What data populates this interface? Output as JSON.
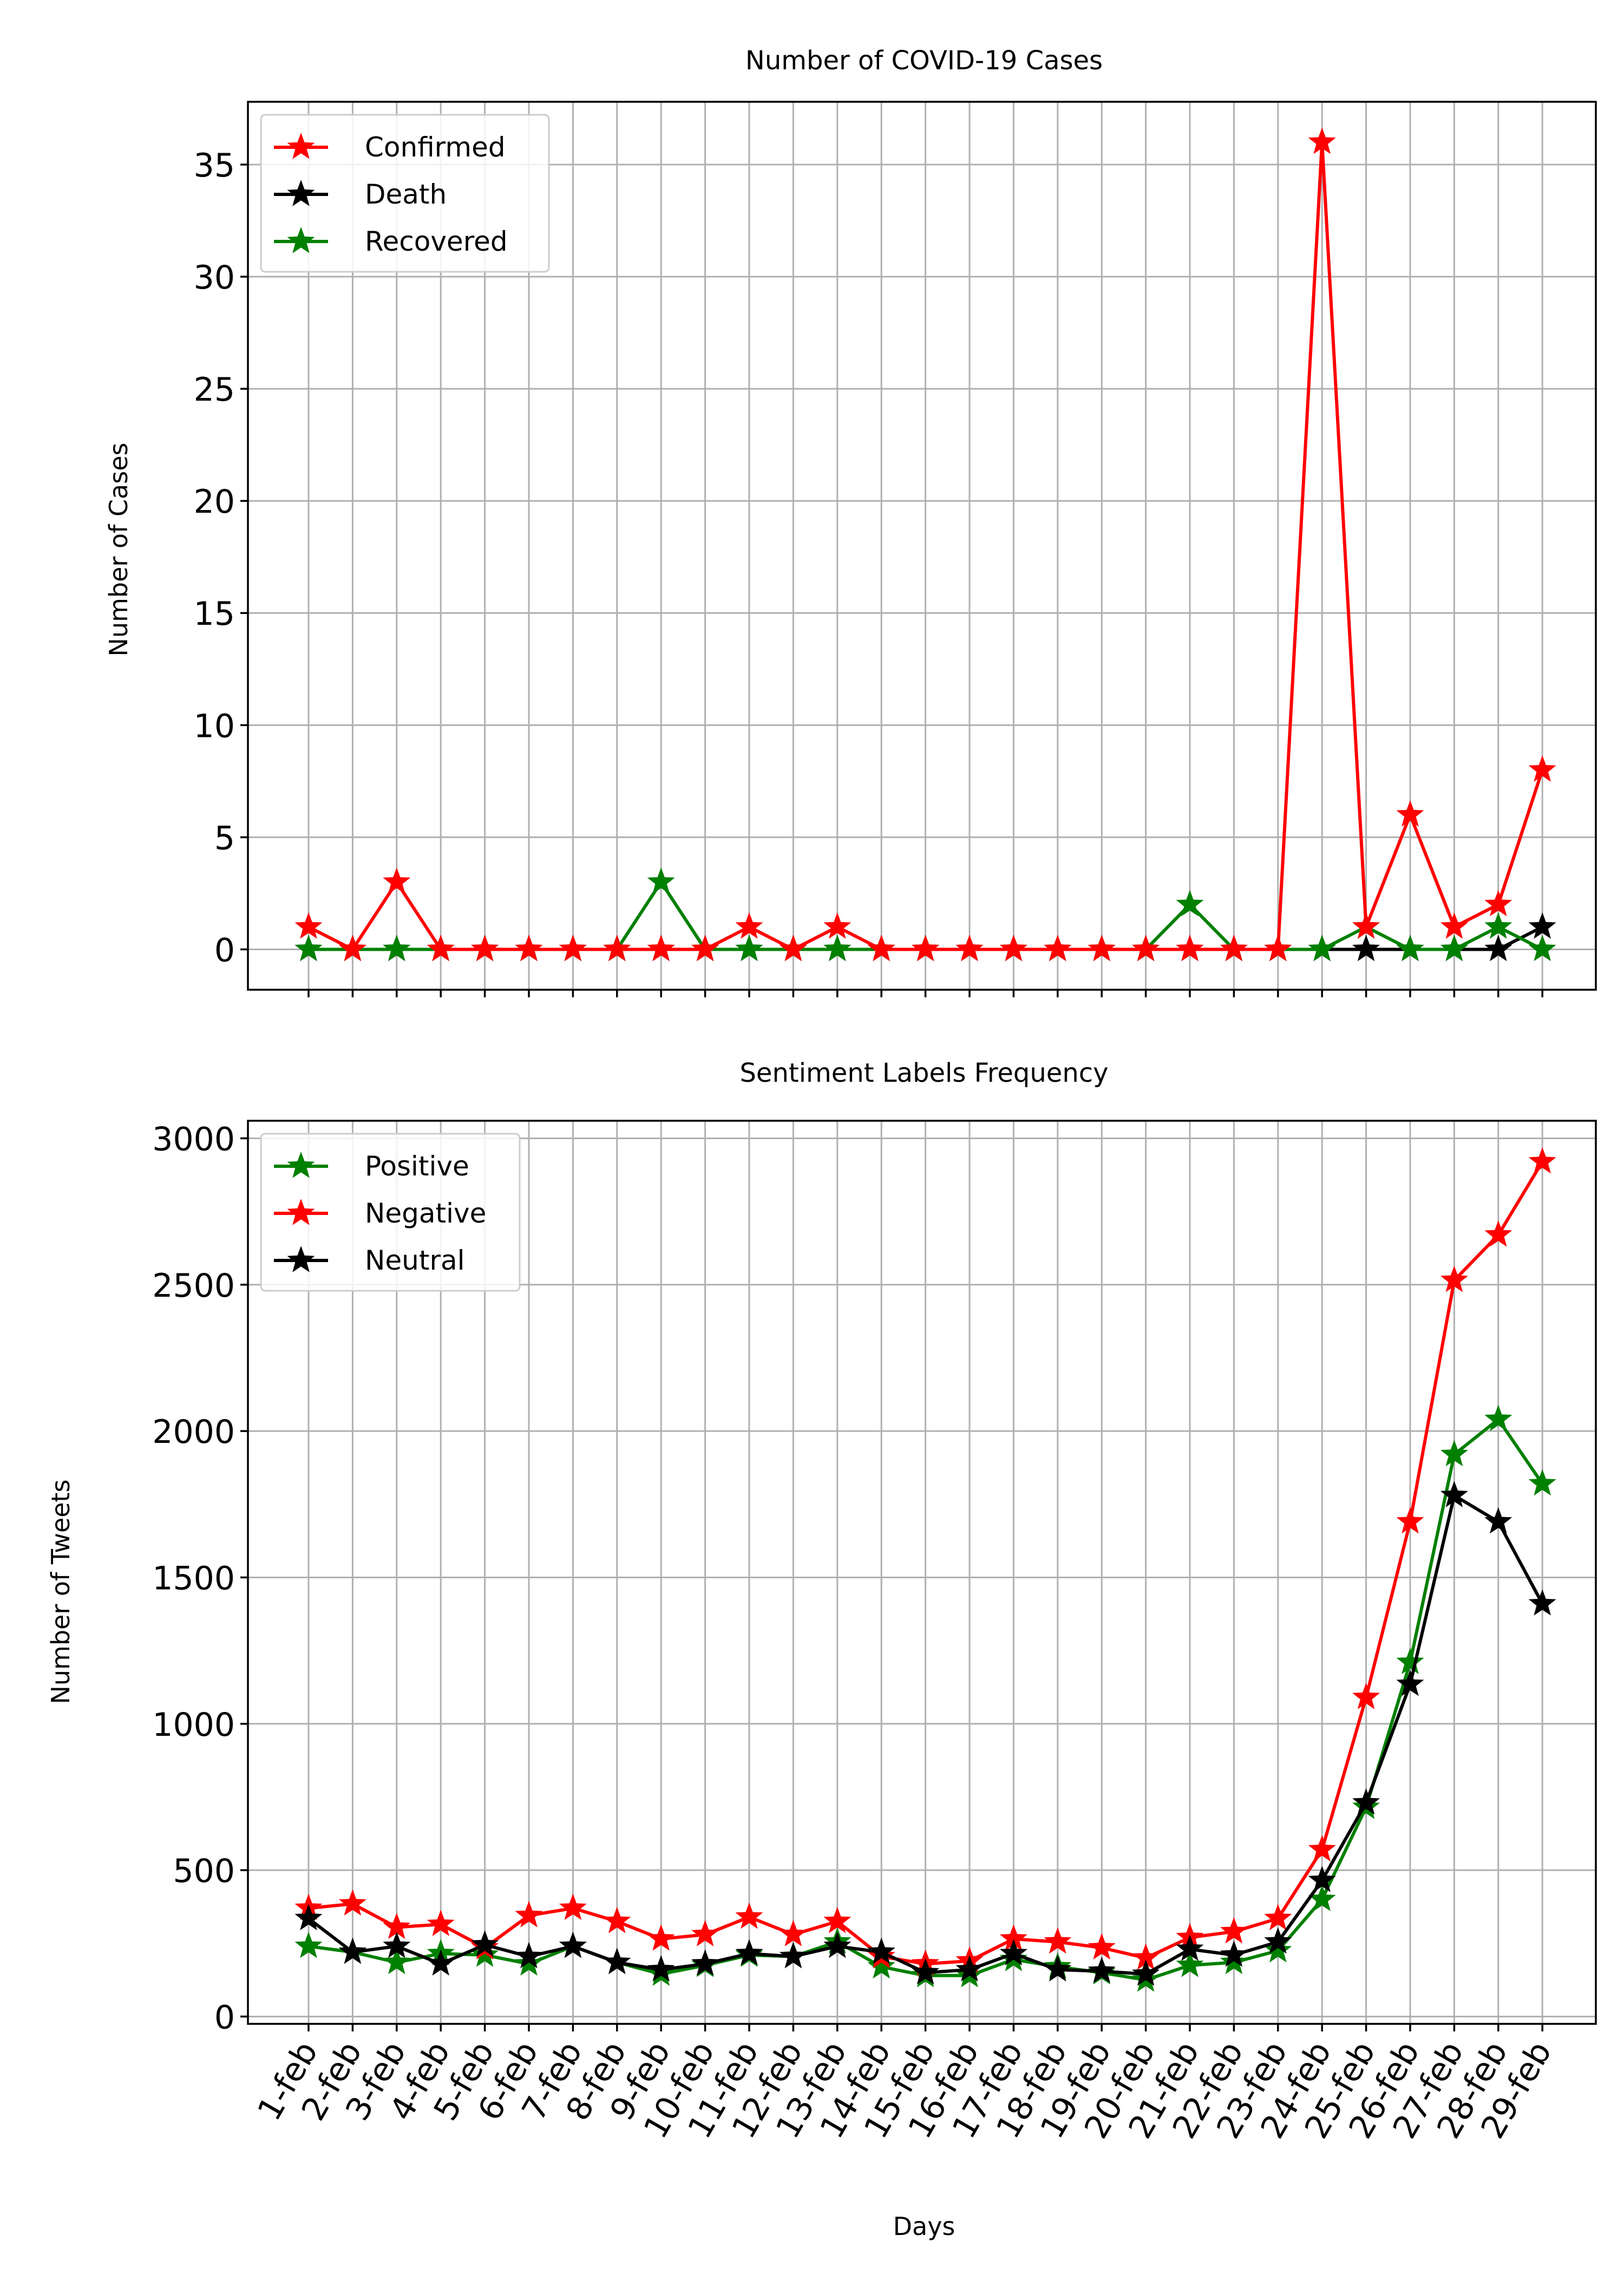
{
  "chart_data": [
    {
      "type": "line",
      "title": "Number of COVID-19 Cases",
      "xlabel": "",
      "ylabel": "Number of Cases",
      "ylim": [
        -1.8,
        37.8
      ],
      "yticks": [
        0,
        5,
        10,
        15,
        20,
        25,
        30,
        35
      ],
      "grid": true,
      "legend_position": "top-left",
      "marker": "star",
      "categories": [
        "1-feb",
        "2-feb",
        "3-feb",
        "4-feb",
        "5-feb",
        "6-feb",
        "7-feb",
        "8-feb",
        "9-feb",
        "10-feb",
        "11-feb",
        "12-feb",
        "13-feb",
        "14-feb",
        "15-feb",
        "16-feb",
        "17-feb",
        "18-feb",
        "19-feb",
        "20-feb",
        "21-feb",
        "22-feb",
        "23-feb",
        "24-feb",
        "25-feb",
        "26-feb",
        "27-feb",
        "28-feb",
        "29-feb"
      ],
      "series": [
        {
          "name": "Death",
          "color": "#000000",
          "values": [
            0,
            0,
            0,
            0,
            0,
            0,
            0,
            0,
            0,
            0,
            0,
            0,
            0,
            0,
            0,
            0,
            0,
            0,
            0,
            0,
            0,
            0,
            0,
            0,
            0,
            0,
            0,
            0,
            1
          ]
        },
        {
          "name": "Recovered",
          "color": "#008000",
          "values": [
            0,
            0,
            0,
            0,
            0,
            0,
            0,
            0,
            3,
            0,
            0,
            0,
            0,
            0,
            0,
            0,
            0,
            0,
            0,
            0,
            2,
            0,
            0,
            0,
            1,
            0,
            0,
            1,
            0
          ]
        },
        {
          "name": "Confirmed",
          "color": "#ff0000",
          "values": [
            1,
            0,
            3,
            0,
            0,
            0,
            0,
            0,
            0,
            0,
            1,
            0,
            1,
            0,
            0,
            0,
            0,
            0,
            0,
            0,
            0,
            0,
            0,
            36,
            1,
            6,
            1,
            2,
            8
          ]
        }
      ],
      "legend_order": [
        "Confirmed",
        "Death",
        "Recovered"
      ]
    },
    {
      "type": "line",
      "title": "Sentiment Labels Frequency",
      "xlabel": "Days",
      "ylabel": "Number of Tweets",
      "ylim": [
        -25,
        3060
      ],
      "yticks": [
        0,
        500,
        1000,
        1500,
        2000,
        2500,
        3000
      ],
      "grid": true,
      "legend_position": "top-left",
      "marker": "star",
      "categories": [
        "1-feb",
        "2-feb",
        "3-feb",
        "4-feb",
        "5-feb",
        "6-feb",
        "7-feb",
        "8-feb",
        "9-feb",
        "10-feb",
        "11-feb",
        "12-feb",
        "13-feb",
        "14-feb",
        "15-feb",
        "16-feb",
        "17-feb",
        "18-feb",
        "19-feb",
        "20-feb",
        "21-feb",
        "22-feb",
        "23-feb",
        "24-feb",
        "25-feb",
        "26-feb",
        "27-feb",
        "28-feb",
        "29-feb"
      ],
      "series": [
        {
          "name": "Positive",
          "color": "#008000",
          "values": [
            240,
            220,
            185,
            215,
            210,
            180,
            240,
            185,
            145,
            175,
            210,
            205,
            255,
            170,
            140,
            140,
            195,
            170,
            150,
            125,
            175,
            185,
            225,
            400,
            715,
            1210,
            1920,
            2040,
            1820
          ]
        },
        {
          "name": "Negative",
          "color": "#ff0000",
          "values": [
            370,
            385,
            305,
            315,
            235,
            345,
            370,
            325,
            265,
            280,
            340,
            280,
            325,
            205,
            180,
            190,
            265,
            255,
            235,
            200,
            270,
            290,
            335,
            570,
            1090,
            1690,
            2515,
            2670,
            2920
          ]
        },
        {
          "name": "Neutral",
          "color": "#000000",
          "values": [
            335,
            220,
            240,
            180,
            245,
            205,
            240,
            185,
            160,
            180,
            215,
            205,
            240,
            220,
            150,
            160,
            215,
            160,
            155,
            145,
            230,
            210,
            255,
            465,
            730,
            1135,
            1780,
            1690,
            1410
          ]
        }
      ],
      "legend_order": [
        "Positive",
        "Negative",
        "Neutral"
      ]
    }
  ]
}
